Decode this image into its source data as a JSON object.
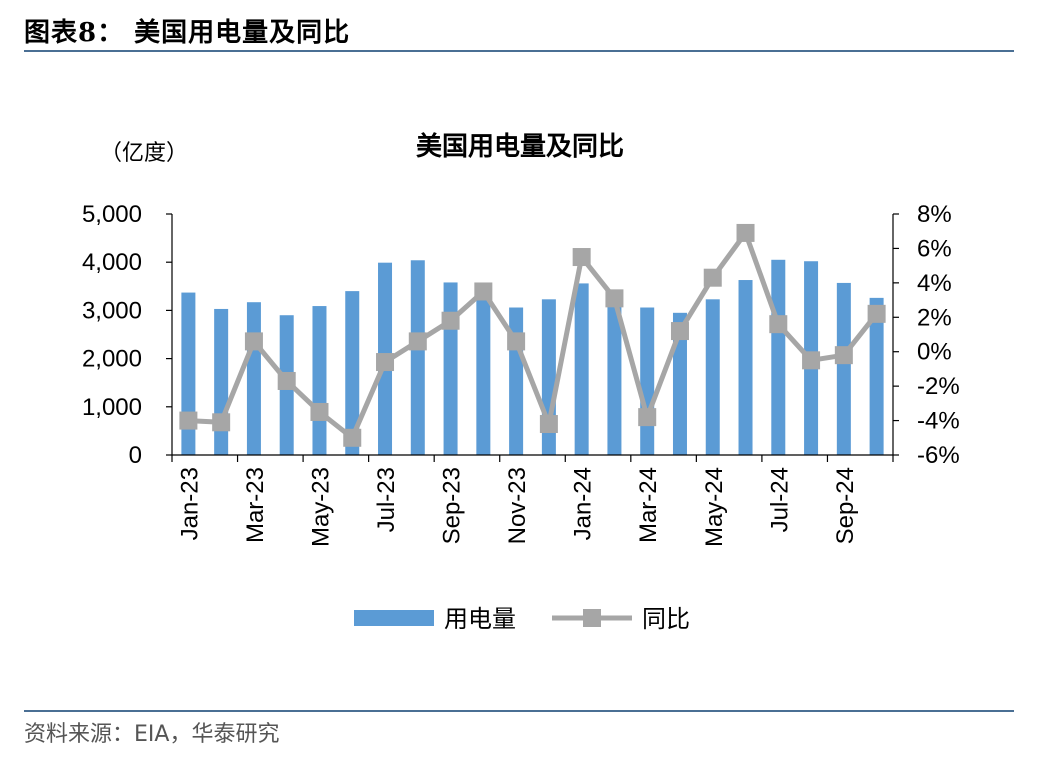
{
  "figure": {
    "header": "图表8：  美国用电量及同比",
    "source": "资料来源：EIA，华泰研究"
  },
  "chart_data": {
    "type": "bar",
    "title": "美国用电量及同比",
    "unit_label": "（亿度）",
    "categories": [
      "Jan-23",
      "Feb-23",
      "Mar-23",
      "Apr-23",
      "May-23",
      "Jun-23",
      "Jul-23",
      "Aug-23",
      "Sep-23",
      "Oct-23",
      "Nov-23",
      "Dec-23",
      "Jan-24",
      "Feb-24",
      "Mar-24",
      "Apr-24",
      "May-24",
      "Jun-24",
      "Jul-24",
      "Aug-24",
      "Sep-24",
      "Oct-24"
    ],
    "tick_labels": [
      "Jan-23",
      "Mar-23",
      "May-23",
      "Jul-23",
      "Sep-23",
      "Nov-23",
      "Jan-24",
      "Mar-24",
      "May-24",
      "Jul-24",
      "Sep-24"
    ],
    "series": [
      {
        "name": "用电量",
        "type": "bar",
        "axis": "left",
        "color": "#5b9bd5",
        "values": [
          3370,
          3030,
          3170,
          2900,
          3090,
          3400,
          3990,
          4040,
          3580,
          3240,
          3060,
          3230,
          3560,
          3210,
          3060,
          2950,
          3230,
          3630,
          4050,
          4020,
          3570,
          3260
        ]
      },
      {
        "name": "同比",
        "type": "line",
        "axis": "right",
        "color": "#a6a6a6",
        "marker": "square",
        "values": [
          -4.0,
          -4.1,
          0.6,
          -1.7,
          -3.5,
          -5.0,
          -0.6,
          0.6,
          1.8,
          3.5,
          0.6,
          -4.2,
          5.5,
          3.1,
          -3.8,
          1.2,
          4.3,
          6.9,
          1.6,
          -0.5,
          -0.2,
          2.2
        ]
      }
    ],
    "y_left": {
      "lim": [
        0,
        5000
      ],
      "ticks": [
        "0",
        "1,000",
        "2,000",
        "3,000",
        "4,000",
        "5,000"
      ],
      "values": [
        0,
        1000,
        2000,
        3000,
        4000,
        5000
      ]
    },
    "y_right": {
      "lim": [
        -6,
        8
      ],
      "ticks": [
        "-6%",
        "-4%",
        "-2%",
        "0%",
        "2%",
        "4%",
        "6%",
        "8%"
      ],
      "values": [
        -6,
        -4,
        -2,
        0,
        2,
        4,
        6,
        8
      ]
    },
    "legend": {
      "position": "bottom"
    },
    "grid": false
  }
}
